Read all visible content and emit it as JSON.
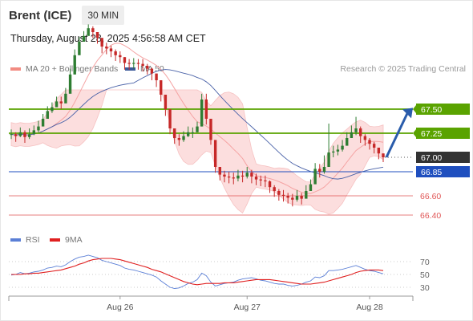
{
  "header": {
    "instrument": "Brent (ICE)",
    "timeframe": "30 MIN",
    "datetime": "Thursday, August 28, 2025 4:56:58 AM CET",
    "credit": "Research © 2025 Trading Central"
  },
  "legend": {
    "price": [
      {
        "label": "MA 20 + Bollinger Bands",
        "color": "#f28b82"
      },
      {
        "label": "MA 50",
        "color": "#3d5a99"
      }
    ],
    "rsi": [
      {
        "label": "RSI",
        "color": "#5b7fd6"
      },
      {
        "label": "9MA",
        "color": "#e02020"
      }
    ]
  },
  "colors": {
    "up": "#2e7d32",
    "down": "#c62828",
    "bb_fill": "#fcdede",
    "ma20": "#f5a3a3",
    "ma50": "#4a62a8",
    "resistance": "#5aa300",
    "support": "#e05555",
    "pivot": "#1f4fbf",
    "arrow": "#2a5cab",
    "last_price_label": "#333333"
  },
  "chart_data": [
    {
      "type": "candlestick",
      "title": "Brent (ICE) 30 MIN",
      "x_labels": [
        "Aug 26",
        "Aug 27",
        "Aug 28"
      ],
      "ylim": [
        66.3,
        67.85
      ],
      "levels": [
        {
          "value": 67.5,
          "label": "67.50",
          "kind": "resistance"
        },
        {
          "value": 67.25,
          "label": "67.25",
          "kind": "resistance"
        },
        {
          "value": 67.0,
          "label": "67.00",
          "kind": "last"
        },
        {
          "value": 66.85,
          "label": "66.85",
          "kind": "pivot"
        },
        {
          "value": 66.6,
          "label": "66.60",
          "kind": "support"
        },
        {
          "value": 66.4,
          "label": "66.40",
          "kind": "support"
        }
      ],
      "close": [
        67.24,
        67.22,
        67.26,
        67.21,
        67.24,
        67.28,
        67.32,
        67.4,
        67.48,
        67.52,
        67.58,
        67.56,
        67.66,
        67.86,
        68.06,
        68.2,
        68.26,
        68.34,
        68.3,
        68.24,
        68.15,
        68.13,
        68.1,
        68.06,
        68.04,
        67.98,
        67.97,
        67.98,
        67.97,
        67.95,
        67.92,
        67.87,
        67.8,
        67.65,
        67.5,
        67.3,
        67.2,
        67.18,
        67.22,
        67.26,
        67.26,
        67.32,
        67.6,
        67.4,
        67.18,
        66.9,
        66.82,
        66.8,
        66.79,
        66.78,
        66.81,
        66.8,
        66.84,
        66.8,
        66.77,
        66.76,
        66.75,
        66.69,
        66.65,
        66.61,
        66.6,
        66.58,
        66.56,
        66.6,
        66.57,
        66.65,
        66.72,
        66.88,
        66.85,
        66.9,
        67.05,
        67.06,
        67.08,
        67.12,
        67.2,
        67.26,
        67.3,
        67.22,
        67.18,
        67.14,
        67.1,
        67.04,
        67.0
      ],
      "high": [
        67.29,
        67.26,
        67.31,
        67.28,
        67.3,
        67.33,
        67.38,
        67.45,
        67.53,
        67.57,
        67.63,
        67.63,
        67.72,
        67.92,
        68.12,
        68.25,
        68.31,
        68.38,
        68.36,
        68.3,
        68.22,
        68.19,
        68.16,
        68.12,
        68.1,
        68.04,
        68.02,
        68.03,
        68.02,
        68.02,
        67.97,
        67.93,
        67.87,
        67.72,
        67.57,
        67.37,
        67.26,
        67.24,
        67.27,
        67.32,
        67.31,
        67.37,
        67.66,
        67.66,
        67.26,
        67.16,
        66.89,
        66.86,
        66.85,
        66.84,
        66.87,
        66.86,
        66.9,
        66.87,
        66.83,
        66.81,
        66.81,
        66.76,
        66.71,
        66.67,
        66.66,
        66.63,
        66.62,
        66.66,
        66.63,
        66.71,
        66.77,
        66.94,
        66.93,
        67.02,
        67.35,
        67.12,
        67.13,
        67.18,
        67.26,
        67.33,
        67.42,
        67.32,
        67.24,
        67.2,
        67.16,
        67.1,
        67.04
      ],
      "low": [
        67.19,
        67.16,
        67.21,
        67.15,
        67.19,
        67.23,
        67.26,
        67.34,
        67.43,
        67.46,
        67.53,
        67.5,
        67.6,
        67.8,
        68.0,
        68.14,
        68.2,
        68.28,
        68.24,
        68.18,
        68.08,
        68.07,
        68.04,
        68.0,
        67.98,
        67.91,
        67.91,
        67.92,
        67.91,
        67.89,
        67.86,
        67.8,
        67.73,
        67.58,
        67.43,
        67.24,
        67.14,
        67.12,
        67.16,
        67.21,
        67.2,
        67.26,
        67.32,
        67.34,
        67.13,
        66.84,
        66.76,
        66.74,
        66.73,
        66.72,
        66.75,
        66.74,
        66.78,
        66.73,
        66.71,
        66.7,
        66.69,
        66.63,
        66.59,
        66.55,
        66.54,
        66.52,
        66.49,
        66.54,
        66.51,
        66.58,
        66.65,
        66.81,
        66.79,
        66.83,
        66.98,
        67.0,
        67.02,
        67.06,
        67.14,
        67.2,
        67.23,
        67.15,
        67.12,
        67.08,
        67.04,
        66.98,
        66.95
      ],
      "indicators": [
        "MA 20 + Bollinger Bands",
        "MA 50"
      ]
    },
    {
      "type": "line",
      "title": "RSI",
      "ylim": [
        20,
        80
      ],
      "y_ticks": [
        "70",
        "50",
        "30"
      ],
      "series": [
        {
          "name": "RSI",
          "values": [
            49,
            50,
            53,
            51,
            52,
            54,
            55,
            57,
            60,
            61,
            63,
            62,
            65,
            70,
            74,
            77,
            78,
            80,
            78,
            76,
            72,
            70,
            68,
            66,
            64,
            60,
            58,
            57,
            55,
            53,
            51,
            49,
            46,
            40,
            35,
            30,
            28,
            29,
            32,
            36,
            38,
            42,
            52,
            48,
            38,
            32,
            34,
            36,
            37,
            38,
            41,
            43,
            44,
            45,
            43,
            41,
            40,
            38,
            36,
            35,
            35,
            33,
            32,
            33,
            35,
            38,
            40,
            46,
            45,
            48,
            56,
            56,
            57,
            58,
            60,
            62,
            64,
            61,
            58,
            56,
            55,
            53,
            51
          ]
        },
        {
          "name": "9MA",
          "values": [
            50,
            50,
            50,
            51,
            51,
            52,
            52,
            53,
            54,
            55,
            56,
            57,
            59,
            61,
            63,
            66,
            68,
            71,
            73,
            74,
            75,
            75,
            75,
            74,
            73,
            71,
            69,
            67,
            65,
            63,
            61,
            58,
            56,
            54,
            51,
            48,
            45,
            42,
            39,
            37,
            35,
            34,
            35,
            36,
            36,
            36,
            36,
            37,
            37,
            37,
            38,
            39,
            40,
            41,
            42,
            42,
            42,
            42,
            41,
            40,
            39,
            38,
            37,
            36,
            35,
            35,
            35,
            36,
            37,
            38,
            40,
            42,
            44,
            46,
            48,
            50,
            53,
            55,
            56,
            57,
            57,
            57,
            56
          ]
        }
      ]
    }
  ]
}
